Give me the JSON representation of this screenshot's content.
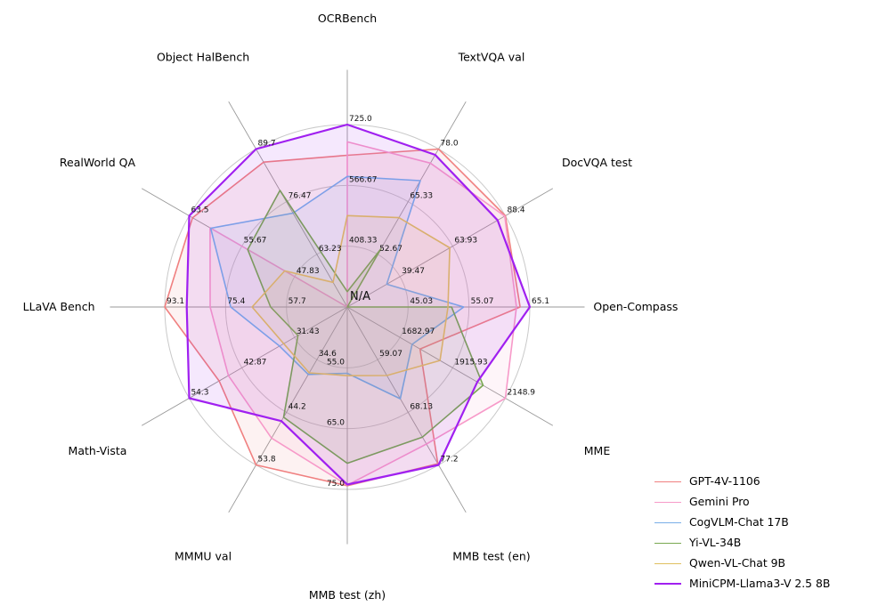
{
  "chart_data": {
    "type": "radar",
    "rings": 3,
    "angle_start": "top",
    "direction": "clockwise",
    "center_label": "N/A",
    "grid": true,
    "legend_position": "bottom-right",
    "axes": [
      {
        "label": "OCRBench",
        "ticks": [
          "725.0",
          "566.67",
          "408.33"
        ],
        "min": 250.0,
        "max": 725.0
      },
      {
        "label": "TextVQA val",
        "ticks": [
          "78.0",
          "65.33",
          "52.67"
        ],
        "min": 40.0,
        "max": 78.0
      },
      {
        "label": "DocVQA test",
        "ticks": [
          "88.4",
          "63.93",
          "39.47"
        ],
        "min": 15.0,
        "max": 88.4
      },
      {
        "label": "Open-Compass",
        "ticks": [
          "65.1",
          "55.07",
          "45.03"
        ],
        "min": 35.0,
        "max": 65.1
      },
      {
        "label": "MME",
        "ticks": [
          "2148.9",
          "1915.93",
          "1682.97"
        ],
        "min": 1450.0,
        "max": 2148.9
      },
      {
        "label": "MMB test (en)",
        "ticks": [
          "77.2",
          "68.13",
          "59.07"
        ],
        "min": 50.0,
        "max": 77.2
      },
      {
        "label": "MMB test (zh)",
        "ticks": [
          "75.0",
          "65.0",
          "55.0"
        ],
        "min": 45.0,
        "max": 75.0
      },
      {
        "label": "MMMU val",
        "ticks": [
          "53.8",
          "44.2",
          "34.6"
        ],
        "min": 25.0,
        "max": 53.8
      },
      {
        "label": "Math-Vista",
        "ticks": [
          "54.3",
          "42.87",
          "31.43"
        ],
        "min": 20.0,
        "max": 54.3
      },
      {
        "label": "LLaVA Bench",
        "ticks": [
          "93.1",
          "75.4",
          "57.7"
        ],
        "min": 40.0,
        "max": 93.1
      },
      {
        "label": "RealWorld QA",
        "ticks": [
          "63.5",
          "55.67",
          "47.83"
        ],
        "min": 40.0,
        "max": 63.5
      },
      {
        "label": "Object HalBench",
        "ticks": [
          "89.7",
          "76.47",
          "63.23"
        ],
        "min": 50.0,
        "max": 89.7
      }
    ],
    "series": [
      {
        "name": "GPT-4V-1106",
        "color": "#f08080",
        "emphasis": false,
        "values": [
          645,
          78.0,
          88.4,
          63.5,
          1771.5,
          77.0,
          74.4,
          53.8,
          47.8,
          93.1,
          63.0,
          86.4
        ]
      },
      {
        "name": "Gemini Pro",
        "color": "#f79ac9",
        "emphasis": false,
        "values": [
          680,
          74.6,
          88.1,
          62.9,
          2148.9,
          73.6,
          74.3,
          48.9,
          45.8,
          79.9,
          60.4,
          null
        ]
      },
      {
        "name": "CogVLM-Chat 17B",
        "color": "#7aaee8",
        "emphasis": false,
        "values": [
          590,
          70.4,
          33.3,
          54.2,
          1736.6,
          65.8,
          55.9,
          37.3,
          34.7,
          73.9,
          60.3,
          73.6
        ]
      },
      {
        "name": "Yi-VL-34B",
        "color": "#79a851",
        "emphasis": false,
        "values": [
          290,
          54.0,
          null,
          52.2,
          2050.2,
          72.4,
          70.7,
          45.1,
          30.7,
          62.3,
          54.8,
          79.3
        ]
      },
      {
        "name": "Qwen-VL-Chat 9B",
        "color": "#e0c060",
        "emphasis": false,
        "values": [
          488,
          61.5,
          62.6,
          51.6,
          1860.0,
          61.8,
          56.3,
          37.0,
          33.8,
          67.7,
          49.3,
          56.2
        ]
      },
      {
        "name": "MiniCPM-Llama3-V 2.5 8B",
        "color": "#a020f0",
        "emphasis": true,
        "values": [
          725,
          76.6,
          84.8,
          65.1,
          2024.6,
          77.2,
          74.2,
          45.8,
          54.3,
          86.7,
          63.5,
          89.7
        ]
      }
    ]
  }
}
